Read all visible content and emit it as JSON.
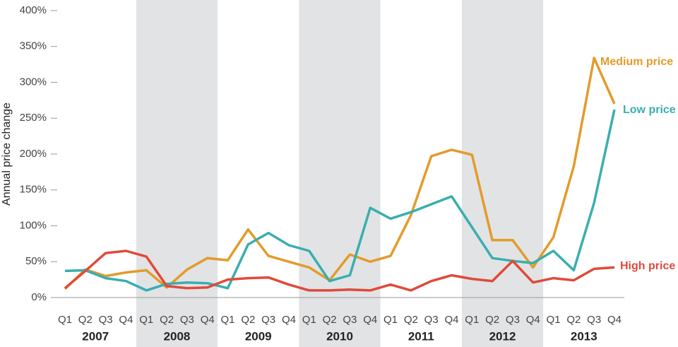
{
  "chart_data": {
    "type": "line",
    "y_label": "Annual price change",
    "categories": [
      "Q1",
      "Q2",
      "Q3",
      "Q4",
      "Q1",
      "Q2",
      "Q3",
      "Q4",
      "Q1",
      "Q2",
      "Q3",
      "Q4",
      "Q1",
      "Q2",
      "Q3",
      "Q4",
      "Q1",
      "Q2",
      "Q3",
      "Q4",
      "Q1",
      "Q2",
      "Q3",
      "Q4",
      "Q1",
      "Q2",
      "Q3",
      "Q4"
    ],
    "years": [
      "2007",
      "2008",
      "2009",
      "2010",
      "2011",
      "2012",
      "2013"
    ],
    "shaded_years": [
      false,
      true,
      false,
      true,
      false,
      true,
      false
    ],
    "ylim": [
      0,
      400
    ],
    "yticks": [
      {
        "value": 0,
        "label": "0%"
      },
      {
        "value": 50,
        "label": "50%"
      },
      {
        "value": 100,
        "label": "100%"
      },
      {
        "value": 150,
        "label": "150%"
      },
      {
        "value": 200,
        "label": "200%"
      },
      {
        "value": 250,
        "label": "250%"
      },
      {
        "value": 300,
        "label": "300%"
      },
      {
        "value": 350,
        "label": "350%"
      },
      {
        "value": 400,
        "label": "400%"
      }
    ],
    "series": [
      {
        "name": "Medium price",
        "color": "#e39b2a",
        "values": [
          12,
          39,
          30,
          35,
          38,
          14,
          39,
          55,
          52,
          95,
          58,
          50,
          42,
          24,
          60,
          50,
          58,
          115,
          197,
          206,
          199,
          80,
          80,
          42,
          84,
          183,
          334,
          270
        ]
      },
      {
        "name": "Low price",
        "color": "#3aaeaf",
        "values": [
          37,
          38,
          27,
          23,
          10,
          19,
          21,
          20,
          13,
          74,
          90,
          73,
          65,
          23,
          31,
          125,
          110,
          119,
          130,
          141,
          98,
          55,
          51,
          48,
          65,
          38,
          132,
          262
        ]
      },
      {
        "name": "High price",
        "color": "#e04a3a",
        "values": [
          13,
          37,
          62,
          65,
          57,
          16,
          13,
          14,
          25,
          27,
          28,
          18,
          10,
          10,
          11,
          10,
          18,
          10,
          23,
          31,
          26,
          23,
          51,
          21,
          27,
          24,
          40,
          42
        ]
      }
    ]
  }
}
